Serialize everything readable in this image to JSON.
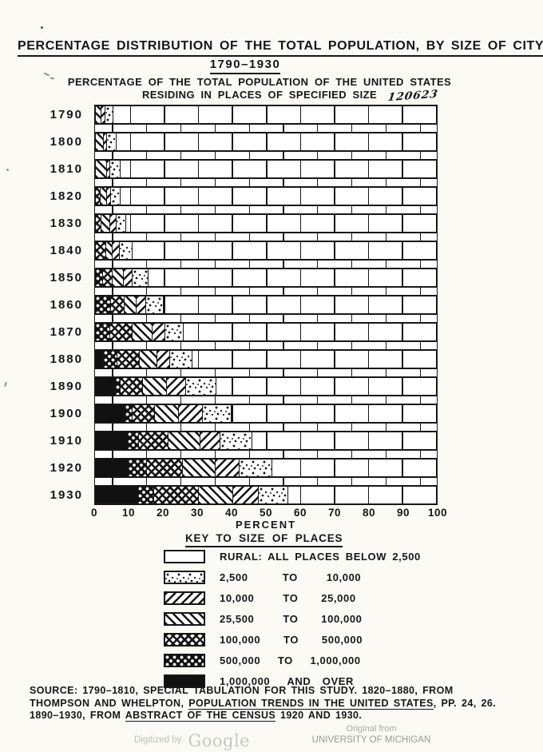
{
  "page": {
    "title_line1": "PERCENTAGE DISTRIBUTION OF THE TOTAL POPULATION,  BY SIZE OF CITY",
    "title_line2": "1790–1930",
    "subtitle_line1": "PERCENTAGE OF THE TOTAL POPULATION OF THE UNITED STATES",
    "subtitle_line2": "RESIDING IN PLACES OF SPECIFIED SIZE",
    "handwritten_note": "120623"
  },
  "chart_data": {
    "type": "bar",
    "stacked": true,
    "orientation": "horizontal",
    "title": "PERCENTAGE DISTRIBUTION OF THE TOTAL POPULATION, BY SIZE OF CITY 1790-1930",
    "xlabel": "PERCENT",
    "xlim": [
      0,
      100
    ],
    "x_ticks": [
      0,
      10,
      20,
      30,
      40,
      50,
      60,
      70,
      80,
      90,
      100
    ],
    "grid": "brick-wall background in rural area",
    "legend_position": "below chart, titled KEY TO SIZE OF PLACES",
    "categories": [
      "1790",
      "1800",
      "1810",
      "1820",
      "1830",
      "1840",
      "1850",
      "1860",
      "1870",
      "1880",
      "1890",
      "1900",
      "1910",
      "1920",
      "1930"
    ],
    "series": [
      {
        "key": "m1000",
        "name": "1,000,000 AND OVER",
        "pattern": "solid-black",
        "values": [
          0,
          0,
          0,
          0,
          0,
          0,
          0,
          0,
          0,
          2.4,
          5.8,
          8.5,
          9.2,
          9.6,
          12.3
        ]
      },
      {
        "key": "k500_1000",
        "name": "500,000 TO 1,000,000",
        "pattern": "black-diag-dots",
        "values": [
          0,
          0,
          0,
          0,
          0,
          0,
          2.2,
          4.4,
          4.2,
          3.9,
          1.3,
          2.2,
          3.3,
          5.4,
          4.7
        ]
      },
      {
        "key": "k100_500",
        "name": "100,000 TO 500,000",
        "pattern": "crosshatch",
        "values": [
          0,
          0,
          0,
          1.3,
          1.6,
          3.0,
          2.8,
          4.0,
          6.5,
          6.5,
          6.7,
          6.4,
          8.6,
          10.3,
          13.0
        ]
      },
      {
        "key": "k25_100",
        "name": "25,500 TO 100,000",
        "pattern": "diag-left",
        "values": [
          1.6,
          2.4,
          3.2,
          2.0,
          2.5,
          2.0,
          3.1,
          3.5,
          5.8,
          5.0,
          6.9,
          7.1,
          9.3,
          9.6,
          10.1
        ]
      },
      {
        "key": "k10_25",
        "name": "10,000 TO 25,000",
        "pattern": "diag-right",
        "values": [
          1.2,
          0.8,
          1.0,
          1.2,
          1.9,
          2.0,
          2.6,
          2.7,
          3.7,
          3.9,
          5.7,
          6.9,
          6.0,
          7.0,
          7.4
        ]
      },
      {
        "key": "k2500_10",
        "name": "2,500 TO 10,000",
        "pattern": "stipple",
        "values": [
          2.3,
          2.9,
          3.1,
          2.7,
          2.8,
          3.8,
          4.7,
          5.2,
          5.5,
          6.5,
          8.8,
          8.5,
          9.3,
          9.4,
          8.6
        ]
      },
      {
        "key": "rural",
        "name": "RURAL: ALL PLACES BELOW 2,500",
        "pattern": "white",
        "values": [
          94.9,
          93.9,
          92.7,
          92.8,
          91.2,
          89.2,
          84.6,
          80.2,
          74.3,
          71.8,
          64.8,
          60.4,
          54.3,
          48.7,
          43.9
        ]
      }
    ]
  },
  "key": {
    "title": "KEY TO SIZE OF PLACES",
    "entries": [
      {
        "pattern": "white",
        "label": "RURAL: ALL PLACES BELOW 2,500"
      },
      {
        "pattern": "stipple",
        "label": "2,500      TO     10,000"
      },
      {
        "pattern": "diag-right",
        "label": "10,000     TO    25,000"
      },
      {
        "pattern": "diag-left",
        "label": "25,500     TO    100,000"
      },
      {
        "pattern": "crosshatch",
        "label": "100,000    TO    500,000"
      },
      {
        "pattern": "black-diag-dots",
        "label": "500,000   TO   1,000,000"
      },
      {
        "pattern": "solid-black",
        "label": "1,000,000   AND  OVER"
      }
    ]
  },
  "source": {
    "line1": "SOURCE: 1790–1810, SPECIAL TABULATION FOR THIS STUDY.  1820–1880, FROM",
    "line2_prefix": "THOMPSON AND WHELPTON, ",
    "line2_title": "POPULATION TRENDS IN THE UNITED STATES",
    "line2_suffix": ", PP. 24, 26.",
    "line3_prefix": "1890–1930, FROM  ",
    "line3_title": "ABSTRACT OF THE CENSUS",
    "line3_suffix": "  1920 AND 1930."
  },
  "footer": {
    "digitized_prefix": "Digitized by",
    "digitized_brand": "Google",
    "original_from": "Original from",
    "institution": "UNIVERSITY OF MICHIGAN"
  }
}
